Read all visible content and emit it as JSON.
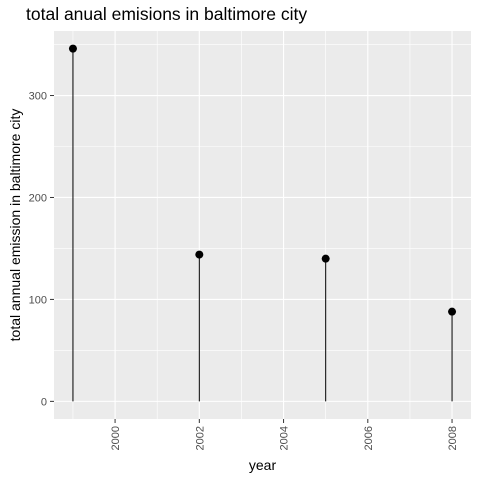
{
  "chart_data": {
    "type": "scatter",
    "title": "total anual emisions in baltimore city",
    "xlabel": "year",
    "ylabel": "total annual emission in baltimore city",
    "x": [
      1999,
      2002,
      2005,
      2008
    ],
    "y": [
      346,
      144,
      140,
      88
    ],
    "xlim": [
      1998.55,
      2008.45
    ],
    "ylim": [
      -17.3,
      363.3
    ],
    "x_ticks": [
      2000,
      2002,
      2004,
      2006,
      2008
    ],
    "x_tick_labels": [
      "2000",
      "2002",
      "2004",
      "2006",
      "2008"
    ],
    "y_ticks": [
      0,
      100,
      200,
      300
    ],
    "y_tick_labels": [
      "0",
      "100",
      "200",
      "300"
    ],
    "x_tick_label_rotation": 90,
    "grid": true,
    "point_style": "lollipop",
    "colors": {
      "panel_background": "#EBEBEB",
      "grid_line": "#FFFFFF",
      "point": "#000000",
      "tick_label": "#4D4D4D",
      "tick_mark": "#333333"
    }
  }
}
